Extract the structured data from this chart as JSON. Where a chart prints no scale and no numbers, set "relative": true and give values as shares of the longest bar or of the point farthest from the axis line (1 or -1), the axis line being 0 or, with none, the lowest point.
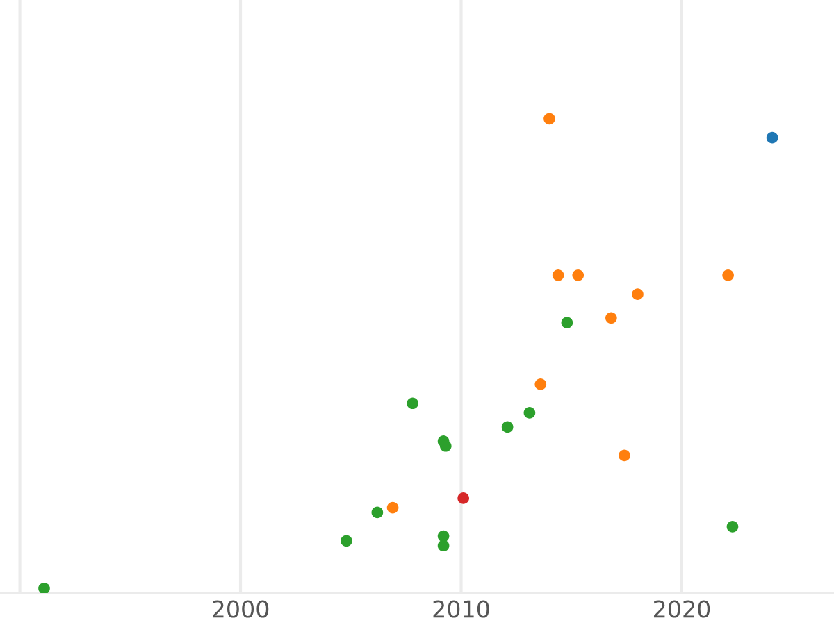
{
  "chart_data": {
    "type": "scatter",
    "relative": true,
    "grid": "x",
    "marker": "circle",
    "tick_labels": "x",
    "xlim": [
      1989.1,
      2026.9
    ],
    "xticks": [
      {
        "value": 1990,
        "label": null
      },
      2000,
      2010,
      2020
    ],
    "series": [
      {
        "color": "#1f77b4",
        "x": [
          2024.1
        ],
        "values": [
          0.96
        ]
      },
      {
        "color": "#ff7f0e",
        "x": [
          2014.0,
          2014.4,
          2015.3,
          2018.0,
          2022.1,
          2016.8,
          2013.6,
          2017.4,
          2006.9
        ],
        "values": [
          1,
          0.67,
          0.67,
          0.63,
          0.67,
          0.58,
          0.44,
          0.29,
          0.18
        ]
      },
      {
        "color": "#2ca02c",
        "x": [
          1991.1,
          2014.8,
          2007.8,
          2013.1,
          2012.1,
          2009.2,
          2009.3,
          2006.2,
          2022.3,
          2009.2,
          2004.8,
          2009.2
        ],
        "values": [
          0.01,
          0.57,
          0.4,
          0.38,
          0.35,
          0.32,
          0.31,
          0.17,
          0.14,
          0.12,
          0.11,
          0.1
        ]
      },
      {
        "color": "#d62728",
        "x": [
          2010.1
        ],
        "values": [
          0.2
        ]
      }
    ]
  }
}
